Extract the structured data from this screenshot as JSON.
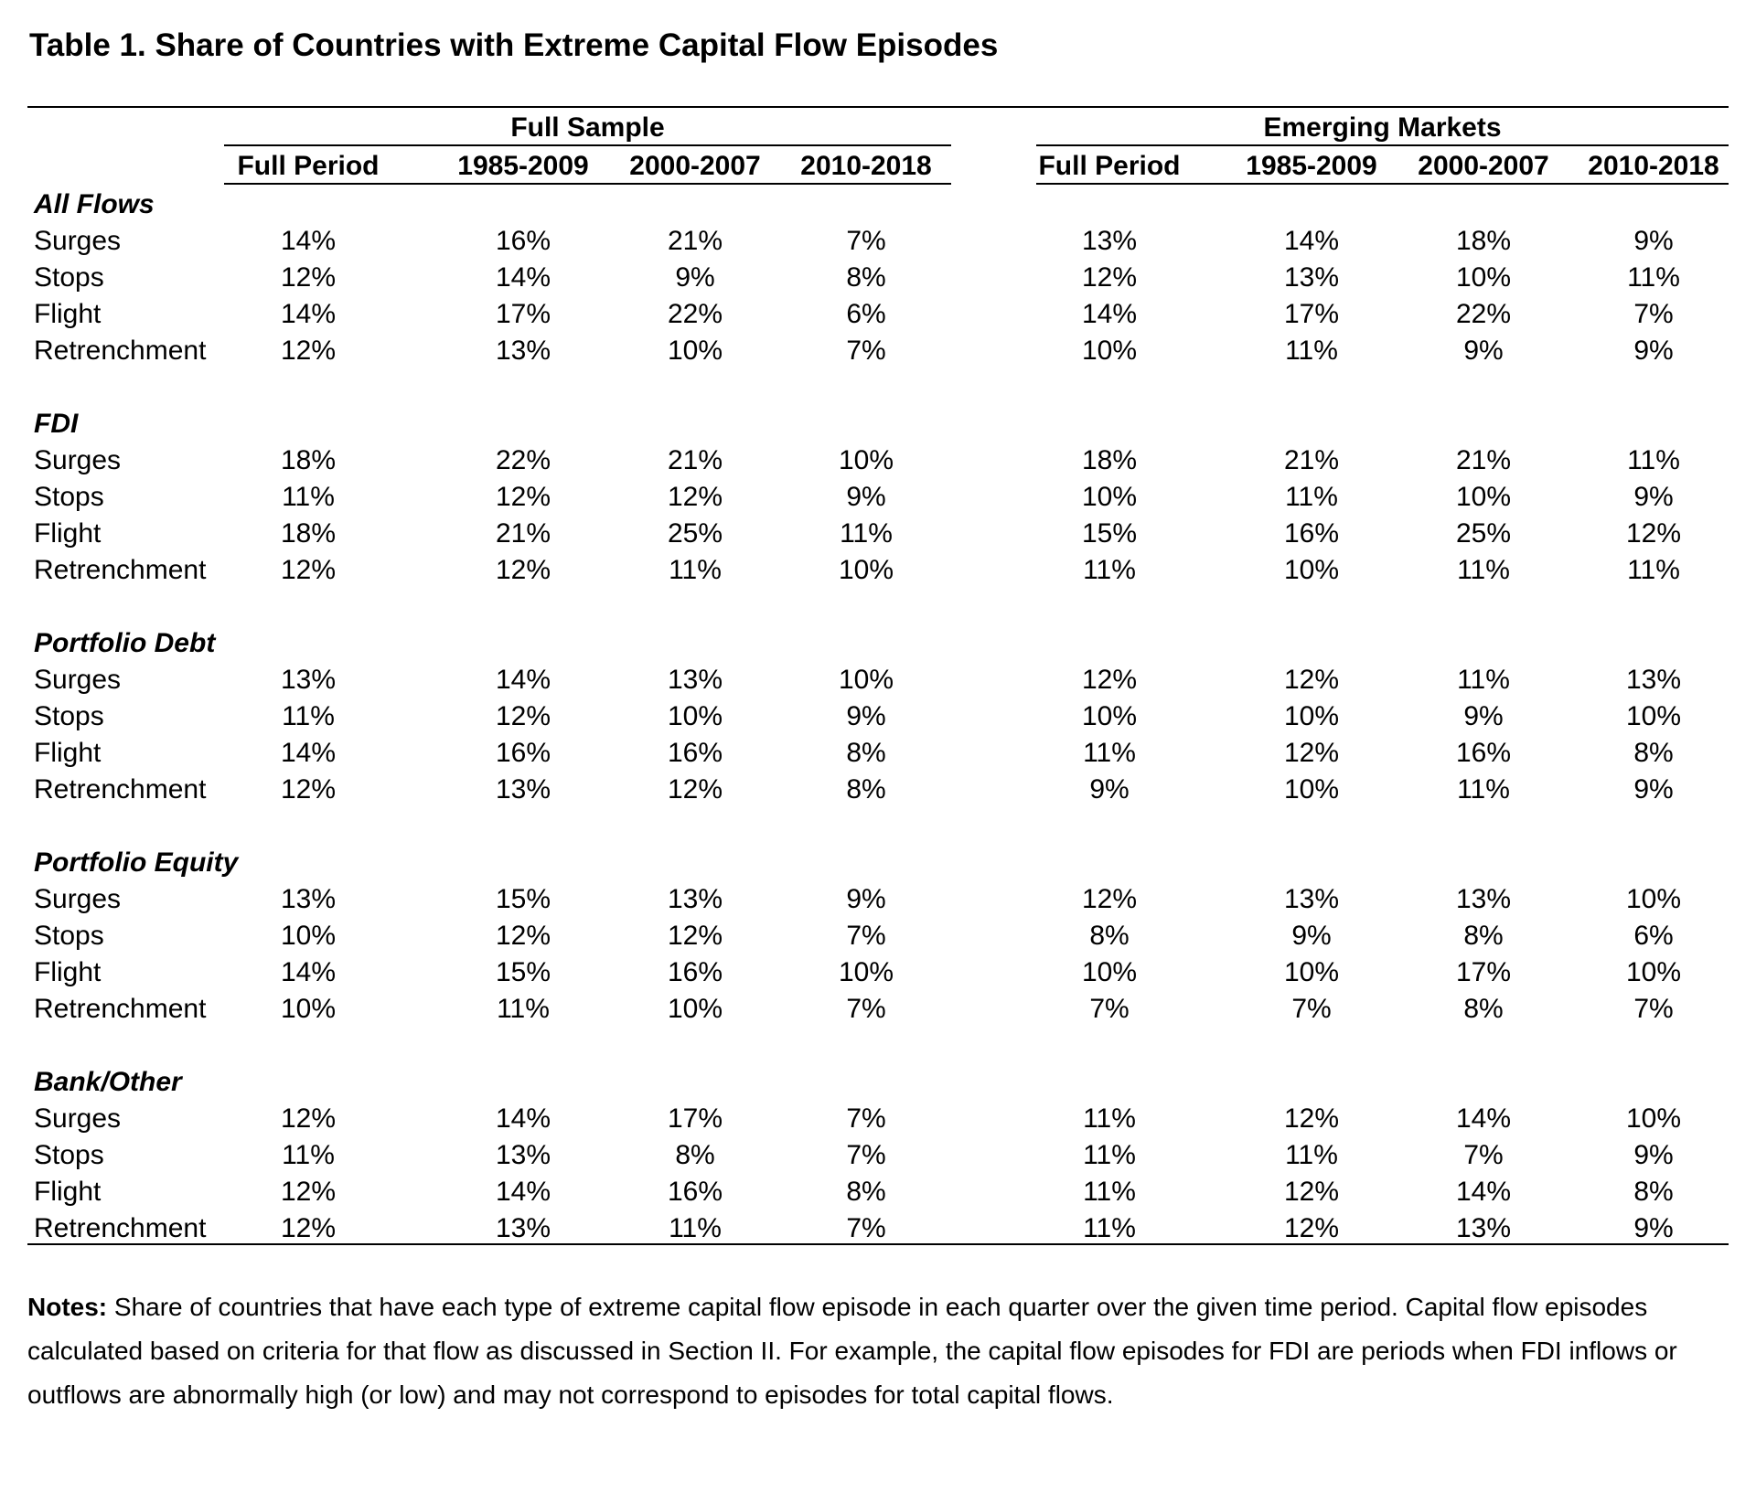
{
  "title": "Table 1. Share of Countries with Extreme Capital Flow Episodes",
  "groups": [
    {
      "label": "Full Sample",
      "columns": [
        "Full Period",
        "1985-2009",
        "2000-2007",
        "2010-2018"
      ]
    },
    {
      "label": "Emerging Markets",
      "columns": [
        "Full Period",
        "1985-2009",
        "2000-2007",
        "2010-2018"
      ]
    }
  ],
  "sections": [
    {
      "name": "All Flows",
      "rows": [
        {
          "label": "Surges",
          "values": [
            "14%",
            "16%",
            "21%",
            "7%",
            "13%",
            "14%",
            "18%",
            "9%"
          ]
        },
        {
          "label": "Stops",
          "values": [
            "12%",
            "14%",
            "9%",
            "8%",
            "12%",
            "13%",
            "10%",
            "11%"
          ]
        },
        {
          "label": "Flight",
          "values": [
            "14%",
            "17%",
            "22%",
            "6%",
            "14%",
            "17%",
            "22%",
            "7%"
          ]
        },
        {
          "label": "Retrenchment",
          "values": [
            "12%",
            "13%",
            "10%",
            "7%",
            "10%",
            "11%",
            "9%",
            "9%"
          ]
        }
      ]
    },
    {
      "name": "FDI",
      "rows": [
        {
          "label": "Surges",
          "values": [
            "18%",
            "22%",
            "21%",
            "10%",
            "18%",
            "21%",
            "21%",
            "11%"
          ]
        },
        {
          "label": "Stops",
          "values": [
            "11%",
            "12%",
            "12%",
            "9%",
            "10%",
            "11%",
            "10%",
            "9%"
          ]
        },
        {
          "label": "Flight",
          "values": [
            "18%",
            "21%",
            "25%",
            "11%",
            "15%",
            "16%",
            "25%",
            "12%"
          ]
        },
        {
          "label": "Retrenchment",
          "values": [
            "12%",
            "12%",
            "11%",
            "10%",
            "11%",
            "10%",
            "11%",
            "11%"
          ]
        }
      ]
    },
    {
      "name": "Portfolio Debt",
      "rows": [
        {
          "label": "Surges",
          "values": [
            "13%",
            "14%",
            "13%",
            "10%",
            "12%",
            "12%",
            "11%",
            "13%"
          ]
        },
        {
          "label": "Stops",
          "values": [
            "11%",
            "12%",
            "10%",
            "9%",
            "10%",
            "10%",
            "9%",
            "10%"
          ]
        },
        {
          "label": "Flight",
          "values": [
            "14%",
            "16%",
            "16%",
            "8%",
            "11%",
            "12%",
            "16%",
            "8%"
          ]
        },
        {
          "label": "Retrenchment",
          "values": [
            "12%",
            "13%",
            "12%",
            "8%",
            "9%",
            "10%",
            "11%",
            "9%"
          ]
        }
      ]
    },
    {
      "name": "Portfolio Equity",
      "rows": [
        {
          "label": "Surges",
          "values": [
            "13%",
            "15%",
            "13%",
            "9%",
            "12%",
            "13%",
            "13%",
            "10%"
          ]
        },
        {
          "label": "Stops",
          "values": [
            "10%",
            "12%",
            "12%",
            "7%",
            "8%",
            "9%",
            "8%",
            "6%"
          ]
        },
        {
          "label": "Flight",
          "values": [
            "14%",
            "15%",
            "16%",
            "10%",
            "10%",
            "10%",
            "17%",
            "10%"
          ]
        },
        {
          "label": "Retrenchment",
          "values": [
            "10%",
            "11%",
            "10%",
            "7%",
            "7%",
            "7%",
            "8%",
            "7%"
          ]
        }
      ]
    },
    {
      "name": "Bank/Other",
      "rows": [
        {
          "label": "Surges",
          "values": [
            "12%",
            "14%",
            "17%",
            "7%",
            "11%",
            "12%",
            "14%",
            "10%"
          ]
        },
        {
          "label": "Stops",
          "values": [
            "11%",
            "13%",
            "8%",
            "7%",
            "11%",
            "11%",
            "7%",
            "9%"
          ]
        },
        {
          "label": "Flight",
          "values": [
            "12%",
            "14%",
            "16%",
            "8%",
            "11%",
            "12%",
            "14%",
            "8%"
          ]
        },
        {
          "label": "Retrenchment",
          "values": [
            "12%",
            "13%",
            "11%",
            "7%",
            "11%",
            "12%",
            "13%",
            "9%"
          ]
        }
      ]
    }
  ],
  "notes": {
    "label": "Notes:",
    "text": " Share of countries that have each type of extreme capital flow episode in each quarter over the given time period. Capital flow episodes calculated based on criteria for that flow as discussed in Section II. For example, the capital flow episodes for FDI are periods when FDI inflows or outflows are abnormally high (or low) and may not correspond to episodes for total capital flows."
  }
}
